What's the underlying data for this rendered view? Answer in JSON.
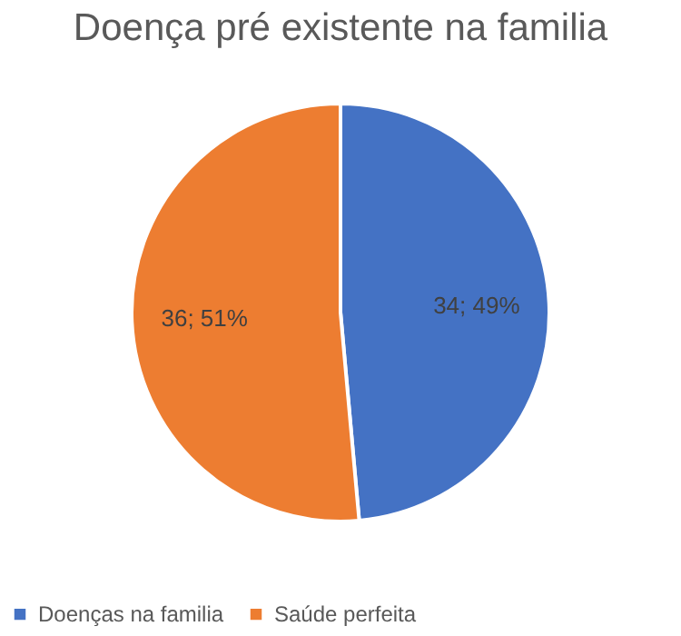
{
  "chart_data": {
    "type": "pie",
    "title": "Doença pré existente na familia",
    "categories": [
      "Doenças na familia",
      "Saúde perfeita"
    ],
    "values": [
      34,
      36
    ],
    "colors": [
      "#4472c4",
      "#ed7d31"
    ],
    "value_labels": [
      "34; 49%",
      "36; 51%"
    ],
    "legend": "bottom"
  }
}
